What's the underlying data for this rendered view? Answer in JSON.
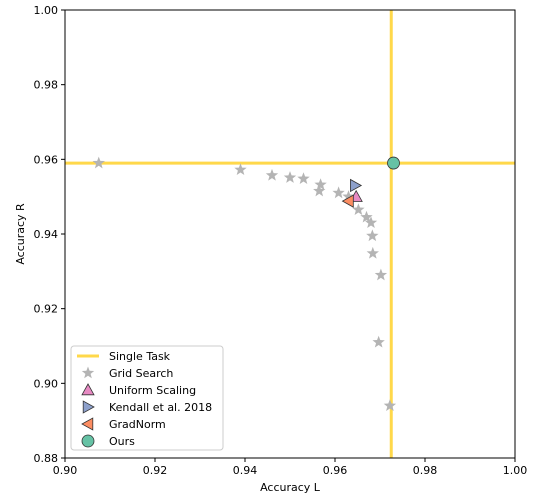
{
  "chart_data": {
    "type": "scatter",
    "xlabel": "Accuracy L",
    "ylabel": "Accuracy R",
    "xlim": [
      0.9,
      1.0
    ],
    "ylim": [
      0.88,
      1.0
    ],
    "xticks": [
      "0.90",
      "0.92",
      "0.94",
      "0.96",
      "0.98",
      "1.00"
    ],
    "yticks": [
      "0.88",
      "0.90",
      "0.92",
      "0.94",
      "0.96",
      "0.98",
      "1.00"
    ],
    "grid": false,
    "legend_position": "bottom-left",
    "single_task": {
      "name": "Single Task",
      "x": 0.9725,
      "y": 0.959,
      "color": "#ffd84a"
    },
    "series": [
      {
        "name": "Grid Search",
        "marker": "star",
        "color": "#b4b4b4",
        "points": [
          [
            0.9075,
            0.959
          ],
          [
            0.939,
            0.9572
          ],
          [
            0.946,
            0.9557
          ],
          [
            0.95,
            0.9551
          ],
          [
            0.953,
            0.9548
          ],
          [
            0.9568,
            0.9532
          ],
          [
            0.9565,
            0.9515
          ],
          [
            0.9608,
            0.951
          ],
          [
            0.963,
            0.95
          ],
          [
            0.9652,
            0.9465
          ],
          [
            0.967,
            0.9445
          ],
          [
            0.968,
            0.943
          ],
          [
            0.9683,
            0.9395
          ],
          [
            0.9684,
            0.9348
          ],
          [
            0.9702,
            0.929
          ],
          [
            0.9697,
            0.911
          ],
          [
            0.9722,
            0.894
          ]
        ]
      },
      {
        "name": "Uniform Scaling",
        "marker": "triangle-up",
        "color": "#e78ac3",
        "points": [
          [
            0.9647,
            0.95
          ]
        ]
      },
      {
        "name": "Kendall et al. 2018",
        "marker": "triangle-right",
        "color": "#8da0cb",
        "points": [
          [
            0.9645,
            0.953
          ]
        ]
      },
      {
        "name": "GradNorm",
        "marker": "triangle-left",
        "color": "#fc8d62",
        "points": [
          [
            0.963,
            0.9488
          ]
        ]
      },
      {
        "name": "Ours",
        "marker": "circle",
        "color": "#66c2a5",
        "points": [
          [
            0.973,
            0.959
          ]
        ]
      }
    ]
  }
}
